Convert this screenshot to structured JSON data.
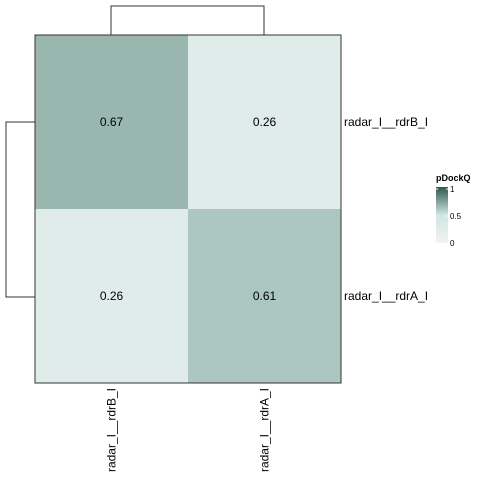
{
  "chart_data": {
    "type": "heatmap",
    "rows": [
      "radar_I__rdrB_I",
      "radar_I__rdrA_I"
    ],
    "columns": [
      "radar_I__rdrB_I",
      "radar_I__rdrA_I"
    ],
    "values": [
      [
        0.67,
        0.26
      ],
      [
        0.26,
        0.61
      ]
    ],
    "color_scale": {
      "title": "pDockQ",
      "min": 0,
      "max": 1,
      "ticks": [
        "0",
        "0.5",
        "1"
      ],
      "low_color": "#f2f2f2",
      "mid_color": "#cfe6e2",
      "high_color": "#2f584c"
    },
    "row_dendrogram": true,
    "column_dendrogram": true,
    "legend_position": "right"
  }
}
